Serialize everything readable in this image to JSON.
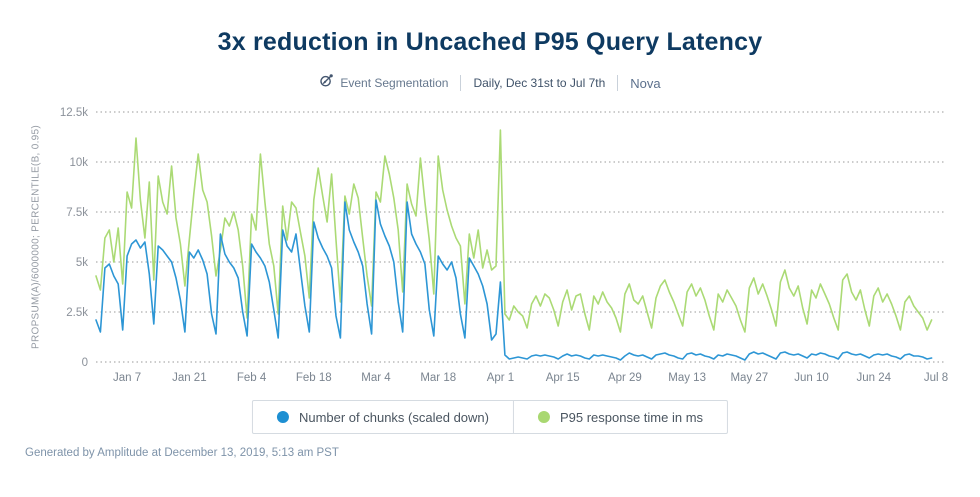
{
  "header": {
    "title": "3x reduction in Uncached P95 Query Latency",
    "chart_type_label": "Event Segmentation",
    "date_range_label": "Daily, Dec 31st to Jul 7th",
    "project_label": "Nova"
  },
  "legend": {
    "items": [
      {
        "label": "Number of chunks (scaled down)",
        "color": "#1d8fd2"
      },
      {
        "label": "P95 response time in ms",
        "color": "#a9d871"
      }
    ]
  },
  "footer": {
    "generated_text": "Generated by Amplitude at December 13, 2019, 5:13 am PST"
  },
  "colors": {
    "title": "#0e3a61",
    "gridline": "#999999",
    "tick_text": "#7b8590",
    "blue_series": "#2d96d5",
    "green_series": "#abda75"
  },
  "chart_data": {
    "type": "line",
    "title": "3x reduction in Uncached P95 Query Latency",
    "xlabel": "",
    "ylabel": "PROPSUM(A)/6000000; PERCENTILE(B, 0.95)",
    "ylim": [
      0,
      12500
    ],
    "x_domain_days": 189,
    "x_start_date": "Dec 31",
    "x_end_date": "Jul 7",
    "grid": "horizontal-dotted",
    "legend_position": "bottom",
    "y_ticks": [
      {
        "value": 0,
        "label": "0"
      },
      {
        "value": 2500,
        "label": "2.5k"
      },
      {
        "value": 5000,
        "label": "5k"
      },
      {
        "value": 7500,
        "label": "7.5k"
      },
      {
        "value": 10000,
        "label": "10k"
      },
      {
        "value": 12500,
        "label": "12.5k"
      }
    ],
    "x_ticks": [
      {
        "day": 7,
        "label": "Jan 7"
      },
      {
        "day": 21,
        "label": "Jan 21"
      },
      {
        "day": 35,
        "label": "Feb 4"
      },
      {
        "day": 49,
        "label": "Feb 18"
      },
      {
        "day": 63,
        "label": "Mar 4"
      },
      {
        "day": 77,
        "label": "Mar 18"
      },
      {
        "day": 91,
        "label": "Apr 1"
      },
      {
        "day": 105,
        "label": "Apr 15"
      },
      {
        "day": 119,
        "label": "Apr 29"
      },
      {
        "day": 133,
        "label": "May 13"
      },
      {
        "day": 147,
        "label": "May 27"
      },
      {
        "day": 161,
        "label": "Jun 10"
      },
      {
        "day": 175,
        "label": "Jun 24"
      },
      {
        "day": 189,
        "label": "Jul 8"
      }
    ],
    "series": [
      {
        "id": "chunks",
        "name": "Number of chunks (scaled down)",
        "color": "#2d96d5",
        "values": [
          2100,
          1500,
          4700,
          4900,
          4300,
          3900,
          1600,
          5300,
          5900,
          6100,
          5700,
          6000,
          4400,
          1900,
          5800,
          5600,
          5300,
          5000,
          4200,
          3100,
          1500,
          5500,
          5200,
          5600,
          5100,
          4400,
          2400,
          1400,
          6400,
          5400,
          5000,
          4700,
          4200,
          2500,
          1300,
          5900,
          5500,
          5200,
          4800,
          4000,
          2600,
          1200,
          6600,
          5800,
          5500,
          6400,
          4600,
          2800,
          1500,
          7000,
          6200,
          5700,
          5300,
          4700,
          2300,
          1200,
          8000,
          6600,
          6000,
          5500,
          4800,
          2900,
          1400,
          8100,
          6900,
          6300,
          5800,
          5000,
          3000,
          1500,
          8000,
          6400,
          5900,
          5500,
          4900,
          2600,
          1300,
          5300,
          4900,
          4600,
          5000,
          4200,
          2400,
          1200,
          5200,
          4800,
          4400,
          3800,
          2900,
          1100,
          1400,
          4000,
          350,
          150,
          200,
          250,
          200,
          150,
          300,
          350,
          300,
          350,
          300,
          250,
          150,
          300,
          400,
          300,
          350,
          300,
          200,
          150,
          350,
          300,
          350,
          300,
          250,
          200,
          100,
          300,
          450,
          350,
          300,
          350,
          250,
          150,
          350,
          400,
          450,
          350,
          300,
          200,
          150,
          400,
          450,
          350,
          400,
          300,
          250,
          150,
          350,
          300,
          400,
          350,
          300,
          200,
          100,
          400,
          500,
          400,
          450,
          350,
          250,
          150,
          450,
          500,
          400,
          350,
          400,
          300,
          200,
          400,
          350,
          450,
          400,
          300,
          250,
          150,
          450,
          500,
          400,
          350,
          400,
          300,
          200,
          350,
          400,
          350,
          400,
          300,
          250,
          150,
          350,
          400,
          300,
          300,
          250,
          150,
          200
        ]
      },
      {
        "id": "p95",
        "name": "P95 response time in ms",
        "color": "#abda75",
        "values": [
          4300,
          3600,
          6200,
          6600,
          5000,
          6700,
          3900,
          8500,
          7700,
          11200,
          8100,
          6200,
          9000,
          4100,
          9300,
          8000,
          7400,
          9800,
          7200,
          5900,
          3800,
          6100,
          8400,
          10400,
          8600,
          8000,
          6300,
          4300,
          5600,
          7200,
          6800,
          7500,
          6600,
          4800,
          2200,
          7400,
          6600,
          10400,
          8000,
          5900,
          4800,
          2400,
          7800,
          6100,
          8000,
          7700,
          6500,
          5300,
          3200,
          8100,
          9700,
          8300,
          7000,
          9400,
          6100,
          3000,
          8300,
          7400,
          8900,
          8200,
          6200,
          4300,
          2800,
          8500,
          8000,
          10300,
          9400,
          8200,
          6600,
          3500,
          8900,
          7900,
          7300,
          10200,
          8000,
          6100,
          3400,
          10300,
          8600,
          7600,
          6800,
          6200,
          5800,
          2900,
          6400,
          5200,
          6600,
          4700,
          5600,
          4600,
          4800,
          11600,
          2400,
          2100,
          2800,
          2500,
          2300,
          1700,
          2900,
          3300,
          2800,
          3400,
          3200,
          2600,
          1800,
          3000,
          3600,
          2600,
          3300,
          3400,
          2400,
          1600,
          3300,
          2900,
          3500,
          3000,
          2700,
          2200,
          1500,
          3400,
          3900,
          3100,
          2900,
          3300,
          2500,
          1700,
          3200,
          3800,
          4100,
          3500,
          3000,
          2400,
          1800,
          3500,
          3900,
          3300,
          3700,
          3100,
          2300,
          1600,
          3400,
          3000,
          3600,
          3200,
          2800,
          2100,
          1500,
          3700,
          4200,
          3400,
          3900,
          3300,
          2600,
          1800,
          4000,
          4600,
          3700,
          3300,
          3800,
          2700,
          1900,
          3600,
          3200,
          3900,
          3400,
          2900,
          2200,
          1600,
          4100,
          4400,
          3500,
          3100,
          3600,
          2600,
          1800,
          3300,
          3700,
          3000,
          3400,
          2900,
          2300,
          1600,
          3000,
          3300,
          2800,
          2500,
          2200,
          1600,
          2100
        ]
      }
    ]
  }
}
